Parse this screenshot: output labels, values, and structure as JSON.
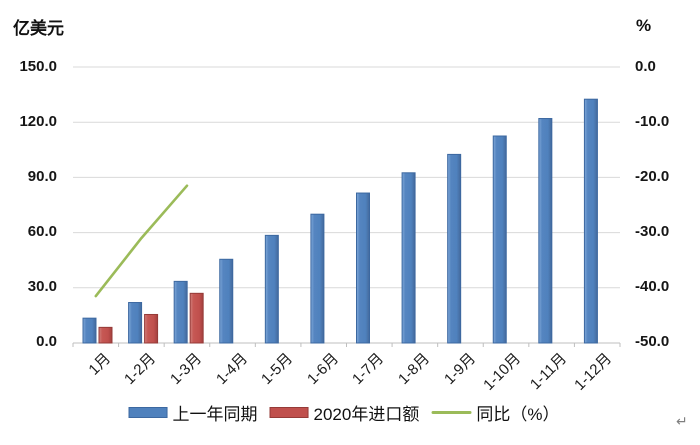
{
  "chart_data": {
    "type": "bar",
    "title": "",
    "left_axis": {
      "title": "亿美元",
      "min": 0,
      "max": 150,
      "step": 30,
      "tick_labels": [
        "150.0",
        "120.0",
        "90.0",
        "60.0",
        "30.0",
        "0.0"
      ]
    },
    "right_axis": {
      "title": "%",
      "min": -50,
      "max": 0,
      "step": 10,
      "tick_labels": [
        "0.0",
        "-10.0",
        "-20.0",
        "-30.0",
        "-40.0",
        "-50.0"
      ]
    },
    "categories": [
      "1月",
      "1-2月",
      "1-3月",
      "1-4月",
      "1-5月",
      "1-6月",
      "1-7月",
      "1-8月",
      "1-9月",
      "1-10月",
      "1-11月",
      "1-12月"
    ],
    "series": [
      {
        "name": "上一年同期",
        "type": "bar",
        "axis": "left",
        "color": "#4F81BD",
        "values": [
          13.5,
          22,
          33.5,
          45.5,
          58.5,
          70,
          81.5,
          92.5,
          102.5,
          112.5,
          122,
          132.5
        ]
      },
      {
        "name": "2020年进口额",
        "type": "bar",
        "axis": "left",
        "color": "#C0504D",
        "values": [
          8.5,
          15.5,
          27,
          null,
          null,
          null,
          null,
          null,
          null,
          null,
          null,
          null
        ]
      },
      {
        "name": "同比（%）",
        "type": "line",
        "axis": "right",
        "color": "#9BBB59",
        "values": [
          -41.5,
          -31,
          -21.5,
          null,
          null,
          null,
          null,
          null,
          null,
          null,
          null,
          null
        ]
      }
    ],
    "grid": true,
    "legend_position": "bottom"
  },
  "footer": {
    "return_mark": "↵"
  }
}
